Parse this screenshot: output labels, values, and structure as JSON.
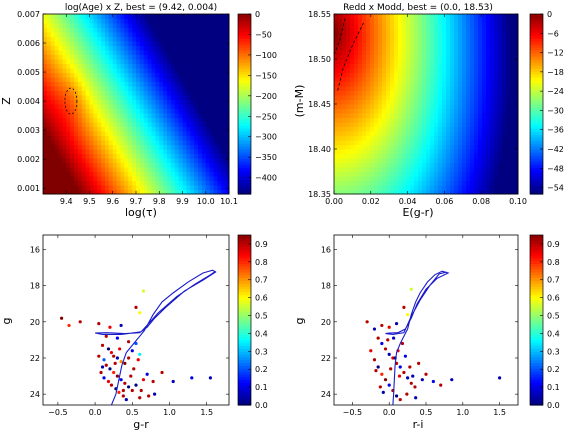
{
  "chart_data": [
    {
      "type": "heatmap",
      "title": "log(Age) x Z, best = (9.42, 0.004)",
      "xlabel": "log(τ)",
      "ylabel": "Z",
      "xlim": [
        9.3,
        10.1
      ],
      "ylim": [
        0.0008,
        0.007
      ],
      "xticks": [
        "9.4",
        "9.5",
        "9.6",
        "9.7",
        "9.8",
        "9.9",
        "10.0",
        "10.1"
      ],
      "xtick_values": [
        9.4,
        9.5,
        9.6,
        9.7,
        9.8,
        9.9,
        10.0,
        10.1
      ],
      "yticks": [
        "0.001",
        "0.002",
        "0.003",
        "0.004",
        "0.005",
        "0.006",
        "0.007"
      ],
      "ytick_values": [
        0.001,
        0.002,
        0.003,
        0.004,
        0.005,
        0.006,
        0.007
      ],
      "colorbar": {
        "range": [
          -440,
          0
        ],
        "ticks": [
          "0",
          "−50",
          "−100",
          "−150",
          "−200",
          "−250",
          "−300",
          "−350",
          "−400"
        ],
        "tick_values": [
          0,
          -50,
          -100,
          -150,
          -200,
          -250,
          -300,
          -350,
          -400
        ]
      },
      "best": [
        9.42,
        0.004
      ]
    },
    {
      "type": "heatmap",
      "title": "Redd x Modd, best = (0.0, 18.53)",
      "xlabel": "E(g-r)",
      "ylabel": "(m-M)",
      "xlim": [
        0.0,
        0.1
      ],
      "ylim": [
        18.35,
        18.55
      ],
      "xticks": [
        "0.00",
        "0.02",
        "0.04",
        "0.06",
        "0.08",
        "0.10"
      ],
      "xtick_values": [
        0.0,
        0.02,
        0.04,
        0.06,
        0.08,
        0.1
      ],
      "yticks": [
        "18.35",
        "18.40",
        "18.45",
        "18.50",
        "18.55"
      ],
      "ytick_values": [
        18.35,
        18.4,
        18.45,
        18.5,
        18.55
      ],
      "colorbar": {
        "range": [
          -56,
          0
        ],
        "ticks": [
          "0",
          "−6",
          "−12",
          "−18",
          "−24",
          "−30",
          "−36",
          "−42",
          "−48",
          "−54"
        ],
        "tick_values": [
          0,
          -6,
          -12,
          -18,
          -24,
          -30,
          -36,
          -42,
          -48,
          -54
        ]
      },
      "best": [
        0.0,
        18.53
      ]
    },
    {
      "type": "scatter",
      "xlabel": "g-r",
      "ylabel": "g",
      "xlim": [
        -0.7,
        1.8
      ],
      "ylim": [
        24.6,
        15.2
      ],
      "xticks": [
        "−0.5",
        "0.0",
        "0.5",
        "1.0",
        "1.5"
      ],
      "xtick_values": [
        -0.5,
        0.0,
        0.5,
        1.0,
        1.5
      ],
      "yticks": [
        "16",
        "18",
        "20",
        "22",
        "24"
      ],
      "ytick_values": [
        16,
        18,
        20,
        22,
        24
      ],
      "colorbar": {
        "range": [
          0.0,
          0.95
        ],
        "ticks": [
          "0.0",
          "0.1",
          "0.2",
          "0.3",
          "0.4",
          "0.5",
          "0.6",
          "0.7",
          "0.8",
          "0.9"
        ],
        "tick_values": [
          0.0,
          0.1,
          0.2,
          0.3,
          0.4,
          0.5,
          0.6,
          0.7,
          0.8,
          0.9
        ]
      },
      "isochrone": [
        [
          0.22,
          24.6
        ],
        [
          0.28,
          24.0
        ],
        [
          0.32,
          23.2
        ],
        [
          0.36,
          22.4
        ],
        [
          0.42,
          21.7
        ],
        [
          0.52,
          21.2
        ],
        [
          0.58,
          20.9
        ],
        [
          0.66,
          20.5
        ],
        [
          0.78,
          19.6
        ],
        [
          0.9,
          18.9
        ],
        [
          1.05,
          18.4
        ],
        [
          1.25,
          17.8
        ],
        [
          1.45,
          17.3
        ],
        [
          1.58,
          17.15
        ],
        [
          1.62,
          17.25
        ],
        [
          1.45,
          17.7
        ],
        [
          1.2,
          18.3
        ],
        [
          0.95,
          19.2
        ],
        [
          0.8,
          19.8
        ],
        [
          0.7,
          20.3
        ],
        [
          0.6,
          20.6
        ],
        [
          0.4,
          20.65
        ],
        [
          0.15,
          20.6
        ],
        [
          0.0,
          20.62
        ],
        [
          0.1,
          20.7
        ],
        [
          0.35,
          20.7
        ],
        [
          0.62,
          20.55
        ],
        [
          0.85,
          19.5
        ],
        [
          1.1,
          18.6
        ],
        [
          1.35,
          17.9
        ],
        [
          1.55,
          17.4
        ],
        [
          1.62,
          17.2
        ]
      ],
      "points": [
        [
          -0.45,
          19.8,
          0.95
        ],
        [
          -0.35,
          20.2,
          0.8
        ],
        [
          -0.2,
          20.0,
          0.9
        ],
        [
          0.05,
          20.1,
          0.9
        ],
        [
          0.2,
          20.3,
          0.85
        ],
        [
          0.35,
          20.2,
          0.05
        ],
        [
          0.55,
          19.2,
          0.9
        ],
        [
          0.6,
          19.5,
          0.6
        ],
        [
          0.65,
          18.3,
          0.55
        ],
        [
          0.15,
          20.8,
          0.9
        ],
        [
          0.3,
          20.9,
          0.1
        ],
        [
          0.45,
          21.1,
          0.9
        ],
        [
          0.55,
          21.2,
          0.2
        ],
        [
          0.6,
          21.8,
          0.35
        ],
        [
          0.1,
          21.3,
          0.9
        ],
        [
          0.18,
          21.5,
          0.0
        ],
        [
          0.22,
          21.7,
          0.85
        ],
        [
          0.25,
          21.9,
          0.9
        ],
        [
          0.3,
          22.0,
          0.05
        ],
        [
          0.35,
          22.2,
          0.7
        ],
        [
          0.4,
          22.3,
          0.95
        ],
        [
          0.12,
          22.1,
          0.2
        ],
        [
          0.15,
          22.4,
          0.9
        ],
        [
          0.2,
          22.6,
          0.0
        ],
        [
          0.25,
          22.8,
          0.8
        ],
        [
          0.3,
          23.0,
          0.95
        ],
        [
          0.35,
          23.2,
          0.1
        ],
        [
          0.4,
          23.4,
          0.9
        ],
        [
          0.45,
          23.6,
          0.0
        ],
        [
          0.5,
          23.8,
          0.9
        ],
        [
          0.08,
          22.8,
          0.9
        ],
        [
          0.12,
          23.1,
          0.1
        ],
        [
          0.18,
          23.3,
          0.85
        ],
        [
          0.22,
          23.5,
          0.9
        ],
        [
          0.28,
          23.7,
          0.0
        ],
        [
          0.32,
          23.9,
          0.8
        ],
        [
          0.38,
          24.1,
          0.9
        ],
        [
          0.42,
          24.3,
          0.05
        ],
        [
          0.48,
          23.0,
          0.9
        ],
        [
          0.52,
          22.6,
          0.9
        ],
        [
          0.55,
          23.5,
          0.0
        ],
        [
          0.6,
          24.2,
          0.9
        ],
        [
          0.65,
          23.2,
          0.85
        ],
        [
          0.7,
          22.9,
          0.1
        ],
        [
          0.78,
          23.3,
          0.9
        ],
        [
          0.8,
          24.0,
          0.05
        ],
        [
          0.9,
          22.8,
          0.9
        ],
        [
          1.05,
          23.3,
          0.05
        ],
        [
          1.3,
          23.1,
          0.1
        ],
        [
          1.55,
          23.1,
          0.05
        ],
        [
          0.05,
          21.9,
          0.9
        ],
        [
          0.1,
          22.5,
          0.05
        ],
        [
          0.45,
          22.0,
          0.9
        ],
        [
          0.5,
          21.6,
          0.1
        ],
        [
          0.38,
          23.8,
          0.9
        ],
        [
          0.27,
          22.3,
          0.9
        ],
        [
          0.33,
          21.5,
          0.85
        ],
        [
          0.58,
          22.1,
          0.85
        ],
        [
          0.62,
          23.8,
          0.9
        ],
        [
          0.72,
          24.1,
          0.9
        ]
      ]
    },
    {
      "type": "scatter",
      "xlabel": "r-i",
      "ylabel": "g",
      "xlim": [
        -0.75,
        1.75
      ],
      "ylim": [
        24.6,
        15.2
      ],
      "xticks": [
        "−0.5",
        "0.0",
        "0.5",
        "1.0",
        "1.5"
      ],
      "xtick_values": [
        -0.5,
        0.0,
        0.5,
        1.0,
        1.5
      ],
      "yticks": [
        "16",
        "18",
        "20",
        "22",
        "24"
      ],
      "ytick_values": [
        16,
        18,
        20,
        22,
        24
      ],
      "colorbar": {
        "range": [
          0.0,
          0.95
        ],
        "ticks": [
          "0.0",
          "0.1",
          "0.2",
          "0.3",
          "0.4",
          "0.5",
          "0.6",
          "0.7",
          "0.8",
          "0.9"
        ],
        "tick_values": [
          0.0,
          0.1,
          0.2,
          0.3,
          0.4,
          0.5,
          0.6,
          0.7,
          0.8,
          0.9
        ]
      },
      "isochrone": [
        [
          0.05,
          24.6
        ],
        [
          0.06,
          24.0
        ],
        [
          0.07,
          23.2
        ],
        [
          0.08,
          22.4
        ],
        [
          0.1,
          21.7
        ],
        [
          0.15,
          21.2
        ],
        [
          0.2,
          20.8
        ],
        [
          0.25,
          20.4
        ],
        [
          0.3,
          19.6
        ],
        [
          0.36,
          18.9
        ],
        [
          0.42,
          18.4
        ],
        [
          0.52,
          17.8
        ],
        [
          0.62,
          17.4
        ],
        [
          0.72,
          17.2
        ],
        [
          0.8,
          17.3
        ],
        [
          0.65,
          17.6
        ],
        [
          0.5,
          18.2
        ],
        [
          0.38,
          19.0
        ],
        [
          0.3,
          19.8
        ],
        [
          0.22,
          20.4
        ],
        [
          0.12,
          20.6
        ],
        [
          0.0,
          20.62
        ],
        [
          -0.05,
          20.65
        ],
        [
          0.05,
          20.7
        ],
        [
          0.2,
          20.6
        ],
        [
          0.3,
          19.7
        ],
        [
          0.42,
          18.8
        ],
        [
          0.55,
          18.0
        ],
        [
          0.68,
          17.35
        ],
        [
          0.78,
          17.25
        ]
      ],
      "points": [
        [
          -0.3,
          20.0,
          0.9
        ],
        [
          -0.2,
          20.4,
          0.05
        ],
        [
          -0.1,
          20.2,
          0.9
        ],
        [
          0.0,
          20.3,
          0.85
        ],
        [
          0.1,
          20.1,
          0.05
        ],
        [
          0.2,
          19.2,
          0.9
        ],
        [
          0.25,
          19.6,
          0.6
        ],
        [
          0.3,
          18.2,
          0.55
        ],
        [
          -0.15,
          20.9,
          0.9
        ],
        [
          -0.1,
          21.2,
          0.1
        ],
        [
          -0.05,
          21.5,
          0.9
        ],
        [
          0.0,
          21.8,
          0.05
        ],
        [
          0.05,
          22.0,
          0.85
        ],
        [
          0.1,
          22.3,
          0.9
        ],
        [
          0.15,
          22.5,
          0.1
        ],
        [
          0.2,
          22.8,
          0.9
        ],
        [
          0.25,
          23.1,
          0.05
        ],
        [
          0.3,
          23.4,
          0.9
        ],
        [
          -0.2,
          22.1,
          0.9
        ],
        [
          -0.15,
          22.5,
          0.0
        ],
        [
          -0.1,
          22.9,
          0.8
        ],
        [
          -0.05,
          23.2,
          0.95
        ],
        [
          0.0,
          23.5,
          0.1
        ],
        [
          0.05,
          23.8,
          0.9
        ],
        [
          0.1,
          24.1,
          0.0
        ],
        [
          0.15,
          24.3,
          0.9
        ],
        [
          -0.12,
          23.6,
          0.9
        ],
        [
          -0.08,
          23.9,
          0.05
        ],
        [
          0.02,
          22.6,
          0.9
        ],
        [
          0.08,
          22.0,
          0.0
        ],
        [
          0.12,
          21.6,
          0.85
        ],
        [
          0.18,
          21.2,
          0.9
        ],
        [
          0.22,
          21.9,
          0.1
        ],
        [
          0.28,
          22.5,
          0.9
        ],
        [
          0.32,
          23.0,
          0.05
        ],
        [
          0.35,
          23.6,
          0.9
        ],
        [
          0.4,
          22.3,
          0.9
        ],
        [
          0.45,
          23.2,
          0.05
        ],
        [
          0.5,
          22.9,
          0.9
        ],
        [
          0.6,
          23.3,
          0.1
        ],
        [
          0.7,
          23.5,
          0.9
        ],
        [
          0.85,
          23.2,
          0.05
        ],
        [
          1.5,
          23.1,
          0.05
        ],
        [
          -0.02,
          21.0,
          0.9
        ],
        [
          0.06,
          20.9,
          0.05
        ],
        [
          -0.25,
          21.6,
          0.85
        ],
        [
          -0.18,
          22.7,
          0.9
        ],
        [
          0.14,
          23.0,
          0.85
        ],
        [
          0.24,
          24.0,
          0.9
        ],
        [
          0.36,
          24.2,
          0.05
        ]
      ]
    }
  ]
}
